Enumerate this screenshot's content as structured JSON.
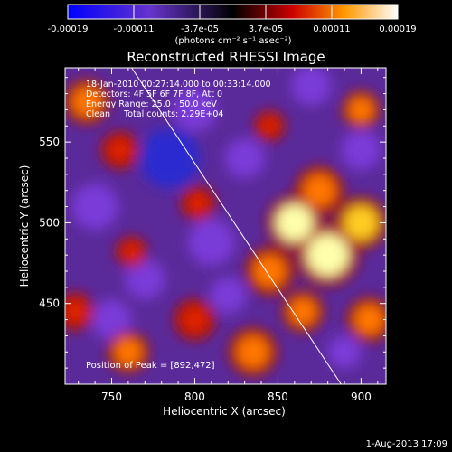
{
  "chart_data": {
    "type": "heatmap",
    "title": "Reconstructed RHESSI Image",
    "xlabel": "Heliocentric X (arcsec)",
    "ylabel": "Heliocentric Y (arcsec)",
    "xlim": [
      722,
      915
    ],
    "ylim": [
      400,
      596
    ],
    "x_ticks": [
      750,
      800,
      850,
      900
    ],
    "y_ticks": [
      450,
      500,
      550
    ],
    "colorbar": {
      "ticks": [
        "-0.00019",
        "-0.00011",
        "-3.7e-05",
        "3.7e-05",
        "0.00011",
        "0.00019"
      ],
      "units": "(photons cm⁻² s⁻¹ asec⁻²)",
      "range": [
        -0.00019,
        0.00019
      ],
      "colors": [
        "#0000ff",
        "#6633cc",
        "#000000",
        "#cc0000",
        "#ff9900",
        "#ffffff"
      ]
    },
    "annotations": [
      "18-Jan-2010 00:27:14.000 to 00:33:14.000",
      "Detectors: 4F 5F 6F 7F 8F, Att 0",
      "Energy Range: 25.0 - 50.0 keV",
      "Clean     Total counts: 2.29E+04"
    ],
    "peak_text": "Position of Peak = [892,472]",
    "peak": [
      892,
      472
    ],
    "limb_line": [
      [
        762,
        596
      ],
      [
        888,
        400
      ]
    ],
    "hot_blobs": [
      {
        "x": 880,
        "y": 480,
        "v": 1.0,
        "r": 18
      },
      {
        "x": 860,
        "y": 500,
        "v": 0.85,
        "r": 16
      },
      {
        "x": 900,
        "y": 500,
        "v": 0.75,
        "r": 15
      },
      {
        "x": 875,
        "y": 520,
        "v": 0.6,
        "r": 14
      },
      {
        "x": 845,
        "y": 470,
        "v": 0.55,
        "r": 14
      },
      {
        "x": 905,
        "y": 440,
        "v": 0.5,
        "r": 13
      },
      {
        "x": 865,
        "y": 445,
        "v": 0.55,
        "r": 12
      },
      {
        "x": 735,
        "y": 575,
        "v": 0.5,
        "r": 13
      },
      {
        "x": 755,
        "y": 545,
        "v": 0.45,
        "r": 11
      },
      {
        "x": 762,
        "y": 482,
        "v": 0.4,
        "r": 9
      },
      {
        "x": 802,
        "y": 512,
        "v": 0.45,
        "r": 10
      },
      {
        "x": 835,
        "y": 420,
        "v": 0.55,
        "r": 14
      },
      {
        "x": 800,
        "y": 440,
        "v": 0.45,
        "r": 12
      },
      {
        "x": 760,
        "y": 420,
        "v": 0.5,
        "r": 12
      },
      {
        "x": 728,
        "y": 445,
        "v": 0.45,
        "r": 11
      },
      {
        "x": 900,
        "y": 570,
        "v": 0.5,
        "r": 11
      },
      {
        "x": 845,
        "y": 560,
        "v": 0.35,
        "r": 9
      }
    ],
    "cold_blobs": [
      {
        "x": 785,
        "y": 540,
        "v": 0.9,
        "r": 18
      },
      {
        "x": 800,
        "y": 570,
        "v": 0.6,
        "r": 13
      },
      {
        "x": 810,
        "y": 488,
        "v": 0.55,
        "r": 14
      },
      {
        "x": 740,
        "y": 510,
        "v": 0.6,
        "r": 14
      },
      {
        "x": 770,
        "y": 465,
        "v": 0.55,
        "r": 12
      },
      {
        "x": 830,
        "y": 540,
        "v": 0.5,
        "r": 12
      },
      {
        "x": 900,
        "y": 545,
        "v": 0.45,
        "r": 12
      },
      {
        "x": 870,
        "y": 585,
        "v": 0.45,
        "r": 12
      },
      {
        "x": 750,
        "y": 440,
        "v": 0.5,
        "r": 12
      },
      {
        "x": 820,
        "y": 455,
        "v": 0.45,
        "r": 11
      },
      {
        "x": 890,
        "y": 420,
        "v": 0.4,
        "r": 10
      }
    ]
  },
  "footer": {
    "timestamp": "1-Aug-2013 17:09"
  }
}
